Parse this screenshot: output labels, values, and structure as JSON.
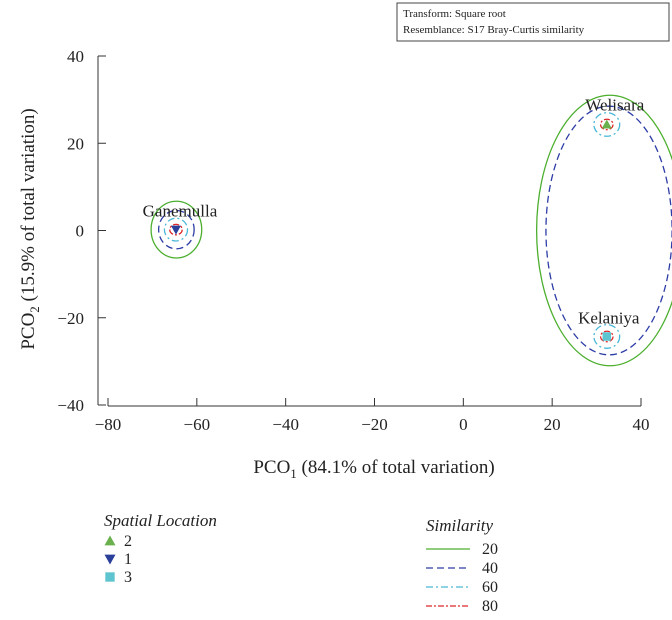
{
  "chart_data": {
    "type": "scatter",
    "title": "",
    "note_lines": [
      "Transform: Square root",
      "Resemblance: S17 Bray-Curtis similarity"
    ],
    "xlabel": {
      "prefix": "PCO",
      "sub": "1",
      "suffix": " (84.1% of total variation)"
    },
    "ylabel": {
      "prefix": "PCO",
      "sub": "2",
      "suffix": " (15.9% of total variation)"
    },
    "xlim": [
      -80,
      45
    ],
    "ylim": [
      -40,
      40
    ],
    "xticks": [
      -80,
      -60,
      -40,
      -20,
      0,
      20,
      40
    ],
    "yticks": [
      -40,
      -20,
      0,
      20,
      40
    ],
    "tick_labels_x": [
      "−80",
      "−60",
      "−40",
      "−20",
      "0",
      "20",
      "40"
    ],
    "tick_labels_y": [
      "−40",
      "−20",
      "0",
      "20",
      "40"
    ],
    "groups": [
      {
        "location": "2",
        "site": "Welisara",
        "x": 32.3,
        "y": 24.3,
        "marker": "triangle-up",
        "color": "#6ab04c"
      },
      {
        "location": "1",
        "site": "Ganemulla",
        "x": -64.7,
        "y": 0.2,
        "marker": "triangle-down",
        "color": "#2a3f9a"
      },
      {
        "location": "3",
        "site": "Kelaniya",
        "x": 32.3,
        "y": -24.3,
        "marker": "square",
        "color": "#5ec4cf"
      }
    ],
    "contours": [
      {
        "level": "20",
        "color": "#4caf2e",
        "dash": "none",
        "ellipses": [
          {
            "cx": -64.6,
            "cy": 0.2,
            "rx": 5.7,
            "ry": 6.5
          },
          {
            "cx": 33.0,
            "cy": 0.0,
            "rx": 16.5,
            "ry": 31.0
          }
        ]
      },
      {
        "level": "40",
        "color": "#2c3ca6",
        "dash": "7 4",
        "ellipses": [
          {
            "cx": -64.6,
            "cy": 0.2,
            "rx": 4.0,
            "ry": 4.4
          },
          {
            "cx": 32.8,
            "cy": 0.0,
            "rx": 14.2,
            "ry": 28.5
          }
        ]
      },
      {
        "level": "60",
        "color": "#4ab8d8",
        "dash": "7 3 2 3",
        "ellipses": [
          {
            "cx": -64.7,
            "cy": 0.2,
            "rx": 2.6,
            "ry": 2.6
          },
          {
            "cx": 32.3,
            "cy": 24.3,
            "rx": 2.9,
            "ry": 2.7
          },
          {
            "cx": 32.3,
            "cy": -24.3,
            "rx": 2.9,
            "ry": 2.7
          }
        ]
      },
      {
        "level": "80",
        "color": "#e0262a",
        "dash": "6 2 2 2",
        "ellipses": [
          {
            "cx": -64.7,
            "cy": 0.2,
            "rx": 1.4,
            "ry": 1.2
          },
          {
            "cx": 32.3,
            "cy": 24.3,
            "rx": 1.4,
            "ry": 1.2
          },
          {
            "cx": 32.3,
            "cy": -24.3,
            "rx": 1.4,
            "ry": 1.2
          }
        ]
      }
    ],
    "legend_location": {
      "title": "Spatial Location",
      "items": [
        "2",
        "1",
        "3"
      ]
    },
    "legend_similarity": {
      "title": "Similarity",
      "items": [
        "20",
        "40",
        "60",
        "80"
      ]
    }
  }
}
